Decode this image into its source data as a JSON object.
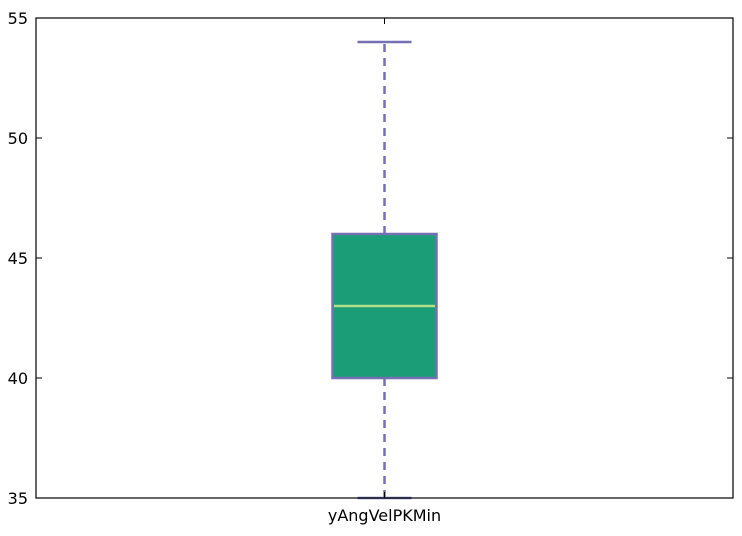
{
  "chart_data": {
    "type": "box",
    "categories": [
      "yAngVelPKMin"
    ],
    "boxes": [
      {
        "label": "yAngVelPKMin",
        "whisker_low": 35,
        "q1": 40,
        "median": 43,
        "q3": 46,
        "whisker_high": 54
      }
    ],
    "ylim": [
      35,
      55
    ],
    "yticks": [
      35,
      40,
      45,
      50,
      55
    ],
    "grid": false,
    "colors": {
      "box_fill": "#1b9e77",
      "box_edge": "#7570b3",
      "whisker": "#7570b3",
      "median": "#b2df8a",
      "axes": "#000000",
      "background": "#ffffff"
    }
  }
}
